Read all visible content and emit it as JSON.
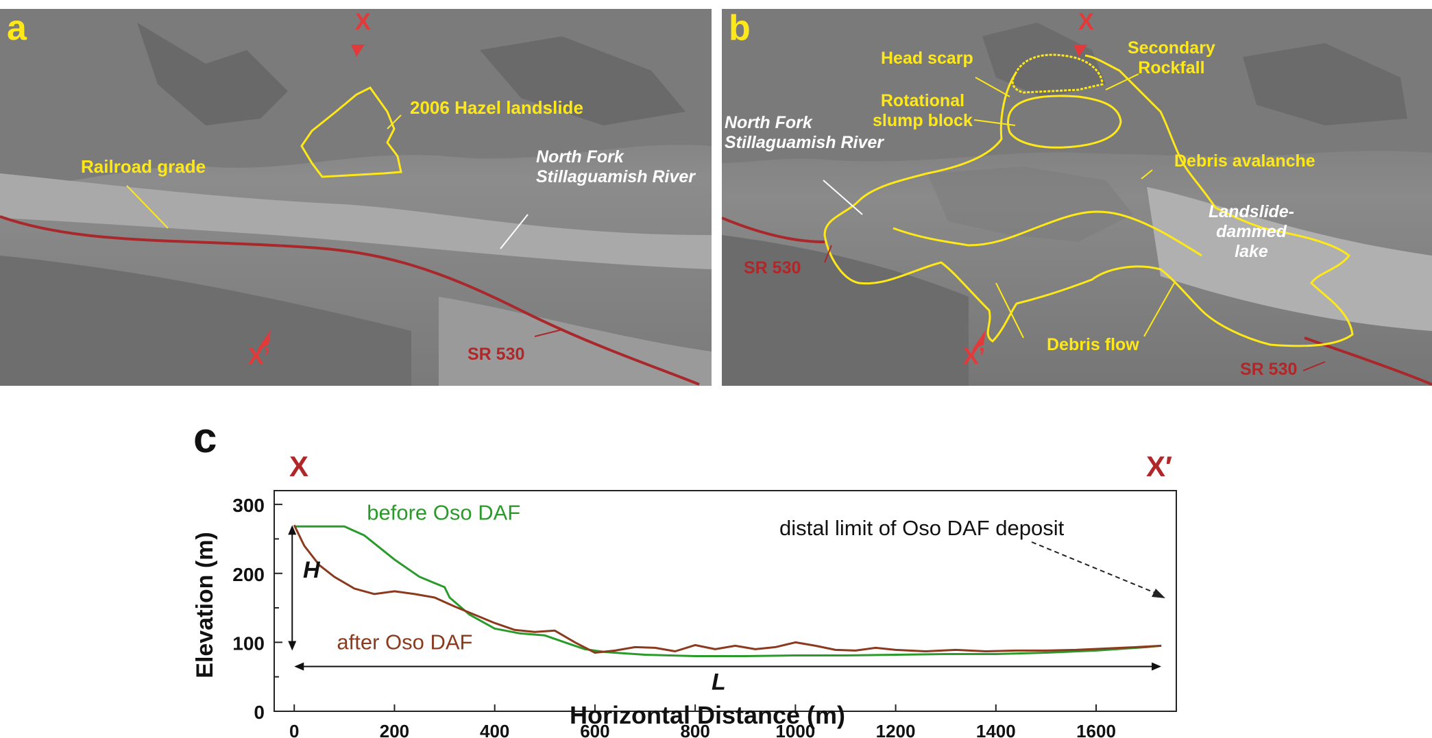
{
  "panel_a": {
    "label": "a",
    "x_marker": "X",
    "x_prime_marker": "X’",
    "hazel": "2006 Hazel landslide",
    "railroad": "Railroad grade",
    "river": "North Fork\nStillaguamish River",
    "road": "SR 530"
  },
  "panel_b": {
    "label": "b",
    "x_marker": "X",
    "x_prime_marker": "X’",
    "head_scarp": "Head scarp",
    "secondary_rockfall": "Secondary\nRockfall",
    "rotational": "Rotational\nslump block",
    "river": "North Fork\nStillaguamish River",
    "debris_avalanche": "Debris avalanche",
    "lake": "Landslide-\ndammed\nlake",
    "road_left": "SR 530",
    "road_right": "SR 530",
    "debris_flow": "Debris flow"
  },
  "panel_c": {
    "label": "c",
    "x_marker": "X",
    "x_prime_marker": "X′",
    "annotation": "distal limit of Oso DAF deposit",
    "h_label": "H",
    "l_label": "L"
  },
  "chart_data": {
    "type": "line",
    "xlabel": "Horizontal Distance (m)",
    "ylabel": "Elevation (m)",
    "xlim": [
      -40,
      1760
    ],
    "ylim": [
      0,
      320
    ],
    "xticks": [
      0,
      200,
      400,
      600,
      800,
      1000,
      1200,
      1400,
      1600
    ],
    "yticks": [
      0,
      100,
      200,
      300
    ],
    "grid": false,
    "colors": {
      "before": "#2a9a2a",
      "after": "#8b3a1e"
    },
    "series": [
      {
        "name": "before Oso DAF",
        "x": [
          0,
          100,
          140,
          200,
          250,
          290,
          300,
          310,
          350,
          400,
          450,
          500,
          540,
          580,
          620,
          700,
          800,
          900,
          1000,
          1100,
          1200,
          1300,
          1400,
          1500,
          1600,
          1700,
          1730
        ],
        "y": [
          268,
          268,
          255,
          220,
          195,
          183,
          180,
          165,
          140,
          120,
          113,
          110,
          100,
          90,
          86,
          82,
          80,
          80,
          81,
          81,
          82,
          83,
          83,
          85,
          88,
          93,
          95
        ]
      },
      {
        "name": "after Oso DAF",
        "x": [
          0,
          20,
          50,
          80,
          120,
          160,
          200,
          240,
          280,
          320,
          360,
          400,
          440,
          480,
          520,
          560,
          600,
          640,
          680,
          720,
          760,
          800,
          840,
          880,
          920,
          960,
          1000,
          1040,
          1080,
          1120,
          1160,
          1200,
          1260,
          1320,
          1380,
          1440,
          1500,
          1560,
          1620,
          1680,
          1730
        ],
        "y": [
          270,
          240,
          212,
          195,
          178,
          170,
          174,
          170,
          165,
          152,
          140,
          128,
          118,
          115,
          117,
          100,
          85,
          88,
          93,
          92,
          87,
          96,
          90,
          95,
          90,
          93,
          100,
          95,
          89,
          88,
          92,
          89,
          87,
          89,
          87,
          88,
          88,
          89,
          91,
          93,
          95
        ]
      }
    ]
  }
}
